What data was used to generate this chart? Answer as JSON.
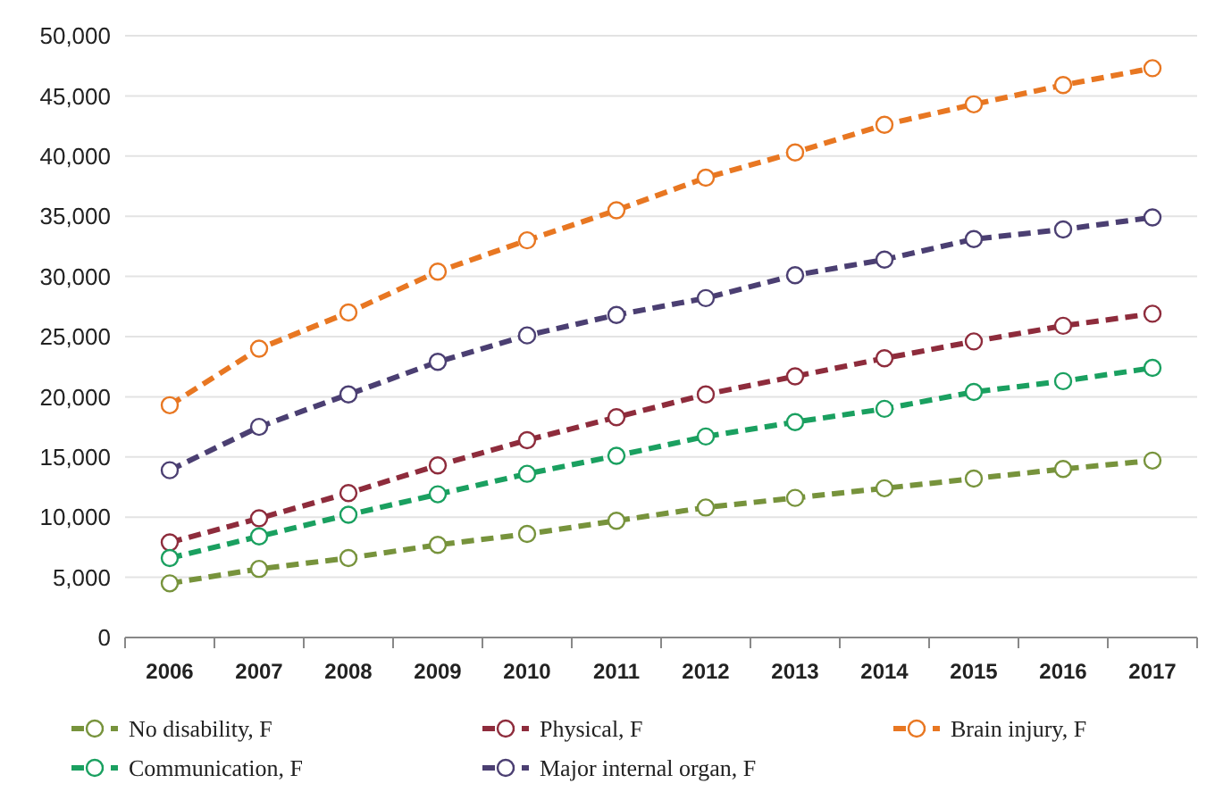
{
  "chart_data": {
    "type": "line",
    "categories": [
      "2006",
      "2007",
      "2008",
      "2009",
      "2010",
      "2011",
      "2012",
      "2013",
      "2014",
      "2015",
      "2016",
      "2017"
    ],
    "ylim": [
      0,
      50000
    ],
    "yticks": [
      {
        "value": 0,
        "label": "0"
      },
      {
        "value": 5000,
        "label": "5,000"
      },
      {
        "value": 10000,
        "label": "10,000"
      },
      {
        "value": 15000,
        "label": "15,000"
      },
      {
        "value": 20000,
        "label": "20,000"
      },
      {
        "value": 25000,
        "label": "25,000"
      },
      {
        "value": 30000,
        "label": "30,000"
      },
      {
        "value": 35000,
        "label": "35,000"
      },
      {
        "value": 40000,
        "label": "40,000"
      },
      {
        "value": 45000,
        "label": "45,000"
      },
      {
        "value": 50000,
        "label": "50,000"
      }
    ],
    "grid": "y",
    "legend": "bottom",
    "marker": "circle",
    "line_style": "dashed",
    "series": [
      {
        "name": "No disability, F",
        "color": "#77933c",
        "values": [
          4500,
          5700,
          6600,
          7700,
          8600,
          9700,
          10800,
          11600,
          12400,
          13200,
          14000,
          14700
        ]
      },
      {
        "name": "Physical, F",
        "color": "#8e2c3c",
        "values": [
          7900,
          9900,
          12000,
          14300,
          16400,
          18300,
          20200,
          21700,
          23200,
          24600,
          25900,
          26900
        ]
      },
      {
        "name": "Brain injury, F",
        "color": "#e87722",
        "values": [
          19300,
          24000,
          27000,
          30400,
          33000,
          35500,
          38200,
          40300,
          42600,
          44300,
          45900,
          47300
        ]
      },
      {
        "name": "Communication, F",
        "color": "#1aa060",
        "values": [
          6600,
          8400,
          10200,
          11900,
          13600,
          15100,
          16700,
          17900,
          19000,
          20400,
          21300,
          22400
        ]
      },
      {
        "name": "Major internal organ, F",
        "color": "#4b3f72",
        "values": [
          13900,
          17500,
          20200,
          22900,
          25100,
          26800,
          28200,
          30100,
          31400,
          33100,
          33900,
          34900
        ]
      }
    ]
  }
}
